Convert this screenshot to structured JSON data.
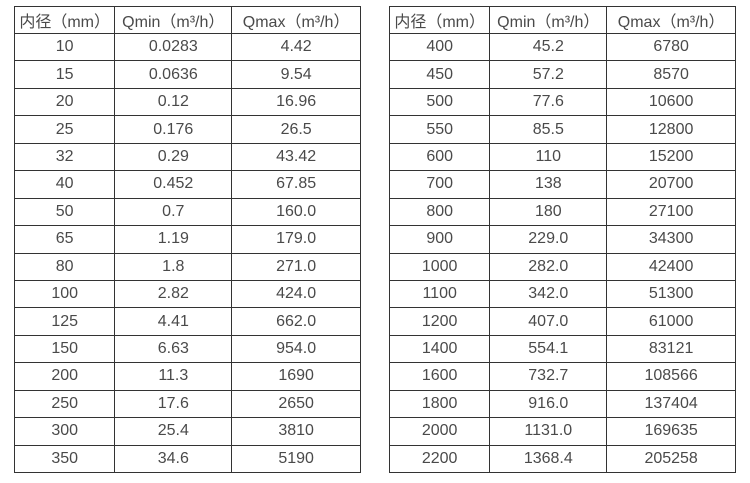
{
  "colors": {
    "text": "#4a4a4a",
    "border": "#333333",
    "background": "#ffffff"
  },
  "tables": [
    {
      "name": "small-diameter-flow-table",
      "headers": [
        "内径（mm）",
        "Qmin（m³/h）",
        "Qmax（m³/h）"
      ],
      "rows": [
        [
          "10",
          "0.0283",
          "4.42"
        ],
        [
          "15",
          "0.0636",
          "9.54"
        ],
        [
          "20",
          "0.12",
          "16.96"
        ],
        [
          "25",
          "0.176",
          "26.5"
        ],
        [
          "32",
          "0.29",
          "43.42"
        ],
        [
          "40",
          "0.452",
          "67.85"
        ],
        [
          "50",
          "0.7",
          "160.0"
        ],
        [
          "65",
          "1.19",
          "179.0"
        ],
        [
          "80",
          "1.8",
          "271.0"
        ],
        [
          "100",
          "2.82",
          "424.0"
        ],
        [
          "125",
          "4.41",
          "662.0"
        ],
        [
          "150",
          "6.63",
          "954.0"
        ],
        [
          "200",
          "11.3",
          "1690"
        ],
        [
          "250",
          "17.6",
          "2650"
        ],
        [
          "300",
          "25.4",
          "3810"
        ],
        [
          "350",
          "34.6",
          "5190"
        ]
      ]
    },
    {
      "name": "large-diameter-flow-table",
      "headers": [
        "内径（mm）",
        "Qmin（m³/h）",
        "Qmax（m³/h）"
      ],
      "rows": [
        [
          "400",
          "45.2",
          "6780"
        ],
        [
          "450",
          "57.2",
          "8570"
        ],
        [
          "500",
          "77.6",
          "10600"
        ],
        [
          "550",
          "85.5",
          "12800"
        ],
        [
          "600",
          "110",
          "15200"
        ],
        [
          "700",
          "138",
          "20700"
        ],
        [
          "800",
          "180",
          "27100"
        ],
        [
          "900",
          "229.0",
          "34300"
        ],
        [
          "1000",
          "282.0",
          "42400"
        ],
        [
          "1100",
          "342.0",
          "51300"
        ],
        [
          "1200",
          "407.0",
          "61000"
        ],
        [
          "1400",
          "554.1",
          "83121"
        ],
        [
          "1600",
          "732.7",
          "108566"
        ],
        [
          "1800",
          "916.0",
          "137404"
        ],
        [
          "2000",
          "1131.0",
          "169635"
        ],
        [
          "2200",
          "1368.4",
          "205258"
        ]
      ]
    }
  ]
}
